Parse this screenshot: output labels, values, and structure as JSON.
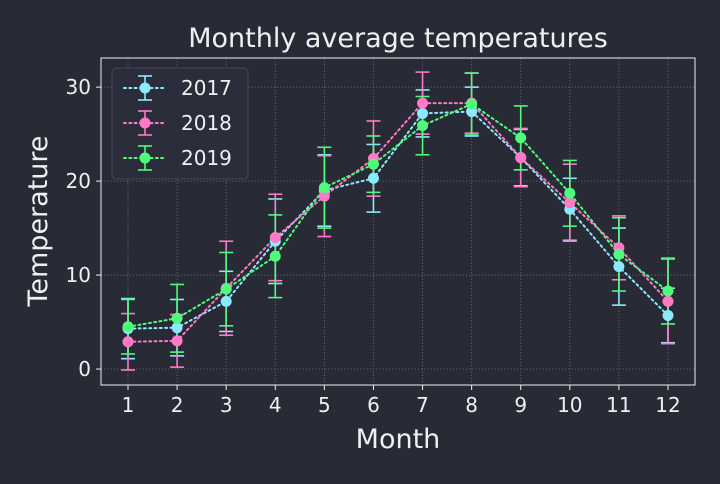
{
  "chart_data": {
    "type": "line",
    "title": "Monthly average temperatures",
    "xlabel": "Month",
    "ylabel": "Temperature",
    "x": [
      1,
      2,
      3,
      4,
      5,
      6,
      7,
      8,
      9,
      10,
      11,
      12
    ],
    "xlim": [
      0.45,
      12.55
    ],
    "ylim": [
      -1.7,
      33.1
    ],
    "yticks": [
      0,
      10,
      20,
      30
    ],
    "grid": true,
    "grid_style": "dotted",
    "legend_position": "top-left",
    "line_style": "dotted",
    "marker": "circle",
    "error_bars": true,
    "background_color": "#282a36",
    "foreground_color": "#f0f0f0",
    "series": [
      {
        "name": "2017",
        "color": "#8be9fd",
        "values": [
          4.3,
          4.4,
          7.2,
          13.6,
          19.0,
          20.3,
          27.2,
          27.4,
          22.5,
          17.0,
          10.9,
          5.7
        ],
        "errors": [
          3.2,
          3.0,
          3.2,
          4.5,
          3.8,
          3.6,
          2.5,
          2.6,
          3.0,
          3.3,
          4.1,
          2.9
        ]
      },
      {
        "name": "2018",
        "color": "#ff79c6",
        "values": [
          2.9,
          3.0,
          8.6,
          14.0,
          18.4,
          22.4,
          28.3,
          28.3,
          22.5,
          17.7,
          12.9,
          7.2
        ],
        "errors": [
          3.0,
          2.8,
          5.0,
          4.6,
          4.3,
          4.0,
          3.3,
          3.2,
          3.1,
          4.1,
          3.4,
          4.5
        ]
      },
      {
        "name": "2019",
        "color": "#50fa7b",
        "values": [
          4.5,
          5.4,
          8.5,
          12.0,
          19.3,
          21.8,
          25.9,
          28.2,
          24.6,
          18.7,
          12.2,
          8.3
        ],
        "errors": [
          2.9,
          3.6,
          3.9,
          4.4,
          4.3,
          3.0,
          3.1,
          3.3,
          3.4,
          3.5,
          3.9,
          3.5
        ]
      }
    ]
  }
}
